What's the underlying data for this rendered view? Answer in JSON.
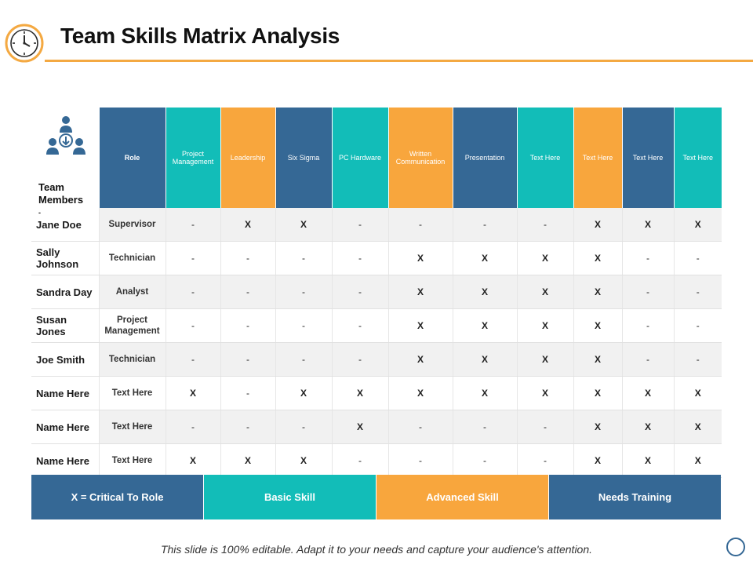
{
  "header": {
    "title": "Team Skills Matrix Analysis"
  },
  "table": {
    "corner_label": "Team Members",
    "columns": [
      {
        "label": "Role",
        "color": "#356895"
      },
      {
        "label": "Project Management",
        "color": "#12bdb8"
      },
      {
        "label": "Leadership",
        "color": "#f8a63d"
      },
      {
        "label": "Six Sigma",
        "color": "#356895"
      },
      {
        "label": "PC Hardware",
        "color": "#12bdb8"
      },
      {
        "label": "Written Communication",
        "color": "#f8a63d"
      },
      {
        "label": "Presentation",
        "color": "#356895"
      },
      {
        "label": "Text Here",
        "color": "#12bdb8"
      },
      {
        "label": "Text Here",
        "color": "#f8a63d"
      },
      {
        "label": "Text Here",
        "color": "#356895"
      },
      {
        "label": "Text Here",
        "color": "#12bdb8"
      }
    ],
    "rows": [
      {
        "name": "Jane Doe",
        "role": "Supervisor",
        "marks": [
          "-",
          "X",
          "X",
          "-",
          "-",
          "-",
          "-",
          "X",
          "X",
          "X"
        ]
      },
      {
        "name": "Sally Johnson",
        "role": "Technician",
        "marks": [
          "-",
          "-",
          "-",
          "-",
          "X",
          "X",
          "X",
          "X",
          "-",
          "-"
        ]
      },
      {
        "name": "Sandra Day",
        "role": "Analyst",
        "marks": [
          "-",
          "-",
          "-",
          "-",
          "X",
          "X",
          "X",
          "X",
          "-",
          "-"
        ]
      },
      {
        "name": "Susan Jones",
        "role": "Project Management",
        "marks": [
          "-",
          "-",
          "-",
          "-",
          "X",
          "X",
          "X",
          "X",
          "-",
          "-"
        ]
      },
      {
        "name": "Joe Smith",
        "role": "Technician",
        "marks": [
          "-",
          "-",
          "-",
          "-",
          "X",
          "X",
          "X",
          "X",
          "-",
          "-"
        ]
      },
      {
        "name": "Name Here",
        "role": "Text Here",
        "marks": [
          "X",
          "-",
          "X",
          "X",
          "X",
          "X",
          "X",
          "X",
          "X",
          "X"
        ]
      },
      {
        "name": "Name Here",
        "role": "Text Here",
        "marks": [
          "-",
          "-",
          "-",
          "X",
          "-",
          "-",
          "-",
          "X",
          "X",
          "X"
        ]
      },
      {
        "name": "Name Here",
        "role": "Text Here",
        "marks": [
          "X",
          "X",
          "X",
          "-",
          "-",
          "-",
          "-",
          "X",
          "X",
          "X"
        ]
      }
    ]
  },
  "legend": [
    {
      "label": "X = Critical To Role",
      "color": "#356895"
    },
    {
      "label": "Basic Skill",
      "color": "#12bdb8"
    },
    {
      "label": "Advanced Skill",
      "color": "#f8a63d"
    },
    {
      "label": "Needs Training",
      "color": "#356895"
    }
  ],
  "footer": {
    "note": "This slide is 100% editable. Adapt it to your needs and capture your audience's attention."
  },
  "icons": {
    "clock": "clock-icon",
    "team": "team-members-icon"
  },
  "colors": {
    "accent": "#f4a942",
    "blue": "#356895",
    "teal": "#12bdb8",
    "orange": "#f8a63d"
  }
}
